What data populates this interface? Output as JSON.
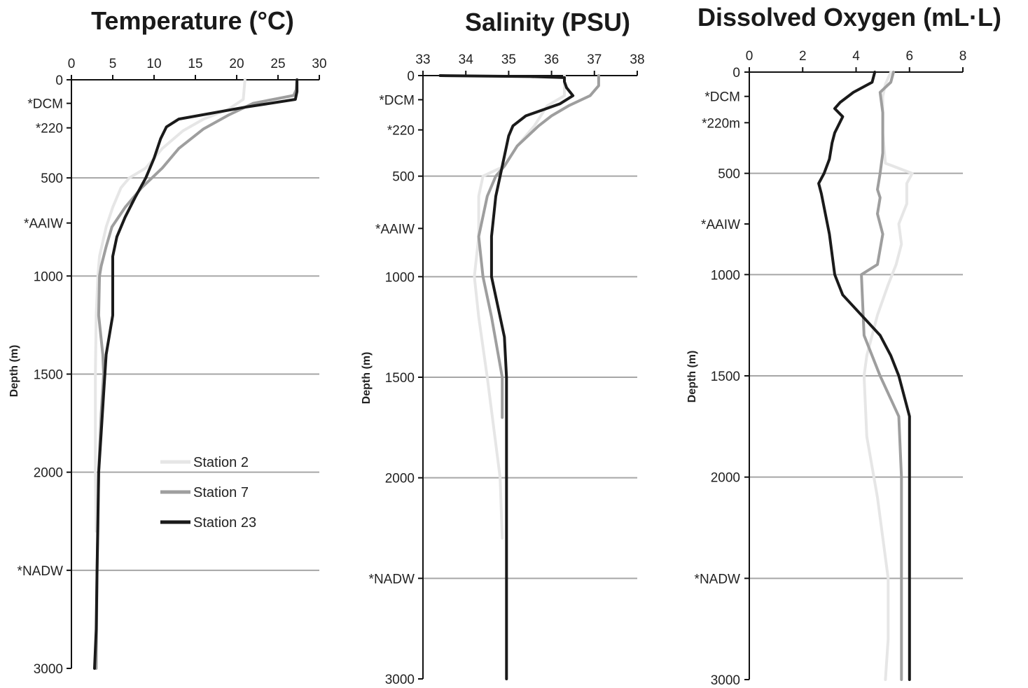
{
  "chart_data": [
    {
      "type": "line",
      "title": "Temperature (°C)",
      "xlabel": "",
      "ylabel": "Depth (m)",
      "x_position": "top",
      "xlim": [
        0,
        30
      ],
      "xticks": [
        "0",
        "5",
        "10",
        "15",
        "20",
        "25",
        "30"
      ],
      "ylim": [
        0,
        3000
      ],
      "y_inverted": true,
      "depth_ticks": [
        {
          "label": "0",
          "depth": 0
        },
        {
          "label": "*DCM",
          "depth": 120
        },
        {
          "label": "*220",
          "depth": 245
        },
        {
          "label": "500",
          "depth": 500
        },
        {
          "label": "*AAIW",
          "depth": 730
        },
        {
          "label": "1000",
          "depth": 1000
        },
        {
          "label": "1500",
          "depth": 1500
        },
        {
          "label": "2000",
          "depth": 2000
        },
        {
          "label": "*NADW",
          "depth": 2500
        },
        {
          "label": "3000",
          "depth": 3000
        }
      ],
      "gridlines": [
        500,
        1000,
        1500,
        2000,
        2500
      ],
      "series": [
        {
          "name": "Station 2",
          "color": "#e6e6e6",
          "depth": [
            0,
            100,
            150,
            200,
            260,
            350,
            450,
            500,
            550,
            650,
            750,
            900,
            1000,
            1200,
            1500,
            2000,
            2300
          ],
          "values": [
            21,
            20.8,
            19,
            16,
            13.5,
            11,
            9,
            7,
            6,
            5,
            4.2,
            3.4,
            3.2,
            3.0,
            2.9,
            2.9,
            3.0
          ]
        },
        {
          "name": "Station 7",
          "color": "#9e9e9e",
          "depth": [
            0,
            50,
            80,
            120,
            180,
            250,
            350,
            450,
            550,
            650,
            750,
            850,
            950,
            1000,
            1200,
            1400,
            1500,
            1700,
            2000,
            2300,
            2500,
            3000
          ],
          "values": [
            27.3,
            27.2,
            26.9,
            22,
            19,
            16,
            13,
            11,
            8.5,
            6.5,
            4.9,
            4.2,
            3.6,
            3.4,
            3.3,
            3.8,
            3.9,
            3.6,
            3.3,
            3.2,
            3.1,
            3.0
          ]
        },
        {
          "name": "Station 23",
          "color": "#1a1a1a",
          "depth": [
            0,
            60,
            100,
            140,
            200,
            240,
            300,
            400,
            500,
            600,
            700,
            800,
            900,
            1000,
            1200,
            1400,
            1600,
            1800,
            2000,
            2500,
            2800,
            3000
          ],
          "values": [
            27.3,
            27.3,
            27.1,
            21,
            13,
            11.5,
            10.8,
            10,
            9.0,
            7.7,
            6.5,
            5.5,
            5.0,
            5.0,
            5.0,
            4.2,
            3.9,
            3.6,
            3.3,
            3.1,
            3.0,
            2.8
          ]
        }
      ],
      "legend": {
        "position": "lower-right",
        "entries": [
          "Station 2",
          "Station 7",
          "Station 23"
        ]
      }
    },
    {
      "type": "line",
      "title": "Salinity (PSU)",
      "xlabel": "",
      "ylabel": "Depth (m)",
      "x_position": "top",
      "xlim": [
        33,
        38
      ],
      "xticks": [
        "33",
        "34",
        "35",
        "36",
        "37",
        "38"
      ],
      "ylim": [
        0,
        3000
      ],
      "y_inverted": true,
      "depth_ticks": [
        {
          "label": "0",
          "depth": 0
        },
        {
          "label": "*DCM",
          "depth": 120
        },
        {
          "label": "*220",
          "depth": 270
        },
        {
          "label": "500",
          "depth": 500
        },
        {
          "label": "*AAIW",
          "depth": 760
        },
        {
          "label": "1000",
          "depth": 1000
        },
        {
          "label": "1500",
          "depth": 1500
        },
        {
          "label": "2000",
          "depth": 2000
        },
        {
          "label": "*NADW",
          "depth": 2500
        },
        {
          "label": "3000",
          "depth": 3000
        }
      ],
      "gridlines": [
        500,
        1000,
        1500,
        2000,
        2500
      ],
      "series": [
        {
          "name": "Station 2",
          "color": "#e6e6e6",
          "depth": [
            0,
            100,
            150,
            250,
            350,
            450,
            500,
            600,
            800,
            1000,
            1200,
            1500,
            2000,
            2300
          ],
          "values": [
            36.3,
            36.3,
            35.9,
            35.6,
            35.2,
            34.9,
            34.4,
            34.3,
            34.3,
            34.2,
            34.3,
            34.5,
            34.8,
            34.85
          ]
        },
        {
          "name": "Station 7",
          "color": "#9e9e9e",
          "depth": [
            0,
            50,
            100,
            150,
            200,
            250,
            350,
            450,
            500,
            600,
            800,
            1000,
            1200,
            1500,
            1700
          ],
          "values": [
            37.1,
            37.1,
            36.9,
            36.4,
            36.0,
            35.7,
            35.2,
            34.9,
            34.7,
            34.5,
            34.3,
            34.4,
            34.6,
            34.85,
            34.85
          ]
        },
        {
          "name": "Station 23",
          "color": "#1a1a1a",
          "depth": [
            0,
            5,
            10,
            30,
            60,
            100,
            140,
            200,
            250,
            300,
            400,
            500,
            600,
            800,
            1000,
            1300,
            1500,
            2000,
            2500,
            3000
          ],
          "values": [
            33.4,
            35.5,
            36.3,
            36.3,
            36.35,
            36.5,
            36.2,
            35.4,
            35.1,
            35.0,
            34.9,
            34.8,
            34.7,
            34.6,
            34.6,
            34.9,
            34.95,
            34.95,
            34.95,
            34.95
          ]
        }
      ]
    },
    {
      "type": "line",
      "title": "Dissolved Oxygen (mL·L)",
      "xlabel": "",
      "ylabel": "Depth (m)",
      "x_position": "top",
      "xlim": [
        0,
        8
      ],
      "xticks": [
        "0",
        "2",
        "4",
        "6",
        "8"
      ],
      "ylim": [
        0,
        3000
      ],
      "y_inverted": true,
      "depth_ticks": [
        {
          "label": "0",
          "depth": 0
        },
        {
          "label": "*DCM",
          "depth": 120
        },
        {
          "label": "*220m",
          "depth": 250
        },
        {
          "label": "500",
          "depth": 500
        },
        {
          "label": "*AAIW",
          "depth": 750
        },
        {
          "label": "1000",
          "depth": 1000
        },
        {
          "label": "1500",
          "depth": 1500
        },
        {
          "label": "2000",
          "depth": 2000
        },
        {
          "label": "*NADW",
          "depth": 2500
        },
        {
          "label": "3000",
          "depth": 3000
        }
      ],
      "gridlines": [
        500,
        1000,
        1500,
        2000,
        2500
      ],
      "series": [
        {
          "name": "Station 2",
          "color": "#e6e6e6",
          "depth": [
            0,
            60,
            120,
            300,
            450,
            500,
            550,
            650,
            750,
            850,
            950,
            1050,
            1200,
            1400,
            1500,
            1800,
            2100,
            2500,
            2800,
            3000
          ],
          "values": [
            5.3,
            5.1,
            5.0,
            5.0,
            5.1,
            6.1,
            5.9,
            5.9,
            5.6,
            5.7,
            5.5,
            5.2,
            4.8,
            4.4,
            4.3,
            4.4,
            4.8,
            5.2,
            5.2,
            5.1
          ]
        },
        {
          "name": "Station 7",
          "color": "#9e9e9e",
          "depth": [
            0,
            50,
            100,
            200,
            400,
            500,
            580,
            620,
            700,
            800,
            950,
            1000,
            1300,
            1500,
            1700,
            2000,
            2500,
            3000
          ],
          "values": [
            5.4,
            5.3,
            4.9,
            5.0,
            5.0,
            4.9,
            4.8,
            4.9,
            4.8,
            5.0,
            4.8,
            4.2,
            4.3,
            4.9,
            5.6,
            5.7,
            5.7,
            5.7
          ]
        },
        {
          "name": "Station 23",
          "color": "#1a1a1a",
          "depth": [
            0,
            50,
            100,
            150,
            180,
            220,
            300,
            350,
            430,
            500,
            550,
            600,
            800,
            1000,
            1100,
            1200,
            1300,
            1400,
            1500,
            1700,
            2000,
            2500,
            3000
          ],
          "values": [
            4.7,
            4.6,
            3.9,
            3.4,
            3.2,
            3.5,
            3.2,
            3.1,
            3.0,
            2.8,
            2.6,
            2.7,
            3.0,
            3.2,
            3.5,
            4.2,
            4.9,
            5.3,
            5.6,
            6.0,
            6.0,
            6.0,
            6.0
          ]
        }
      ]
    }
  ]
}
